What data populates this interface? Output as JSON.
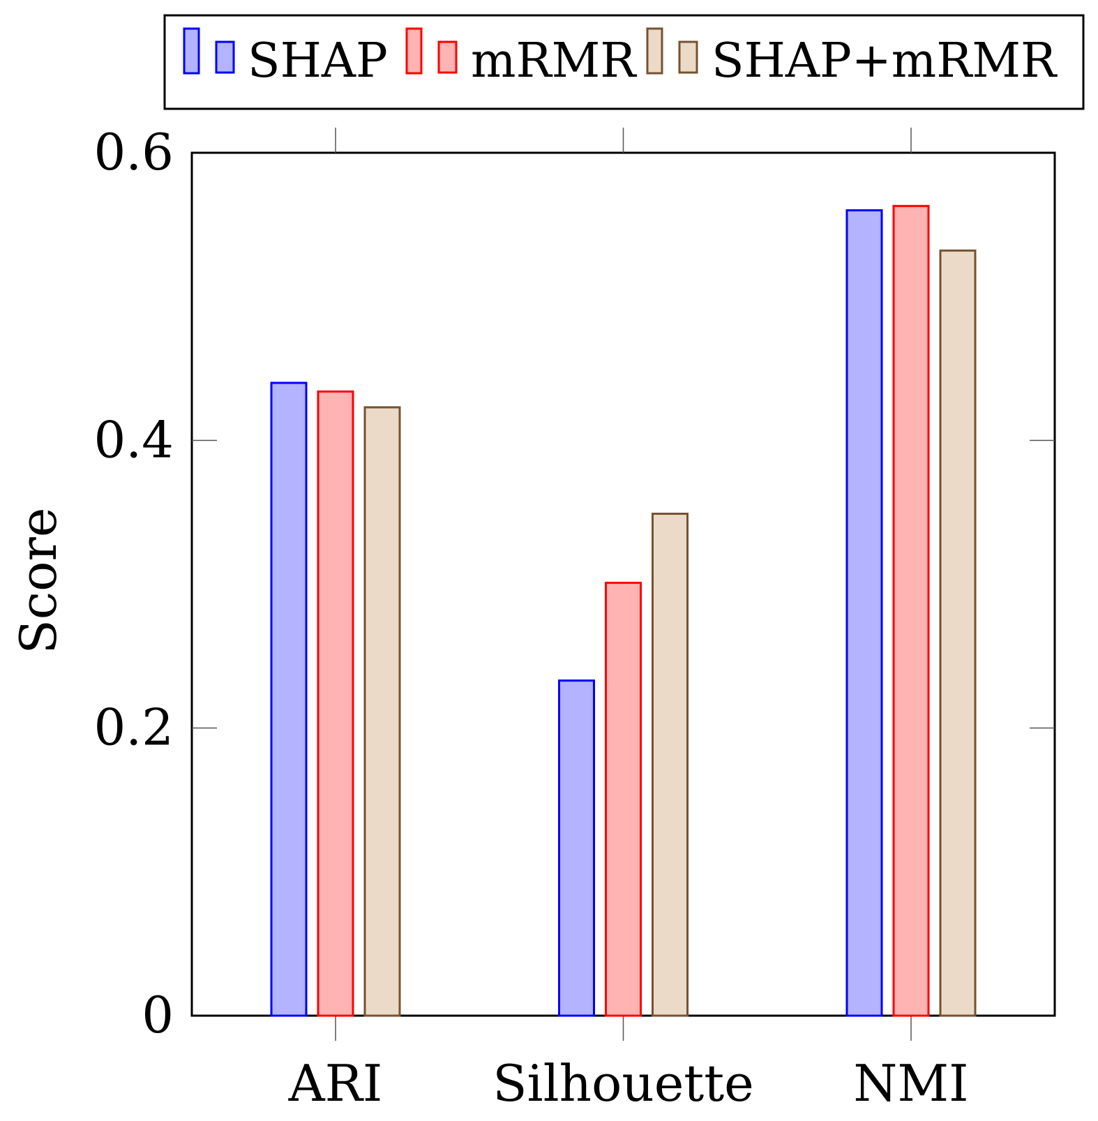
{
  "chart_data": {
    "type": "bar",
    "title": "",
    "xlabel": "",
    "ylabel": "Score",
    "categories": [
      "ARI",
      "Silhouette",
      "NMI"
    ],
    "ylim": [
      0,
      0.6
    ],
    "yticks": [
      "0",
      "0.2",
      "0.4",
      "0.6"
    ],
    "ytick_values": [
      0,
      0.2,
      0.4,
      0.6
    ],
    "grid": false,
    "legend_position": "top",
    "series": [
      {
        "name": "SHAP",
        "values": [
          0.44,
          0.233,
          0.56
        ],
        "stroke": "#0000ff",
        "fill": "#b3b3ff"
      },
      {
        "name": "mRMR",
        "values": [
          0.434,
          0.301,
          0.563
        ],
        "stroke": "#ff0000",
        "fill": "#ffb3b3"
      },
      {
        "name": "SHAP+mRMR",
        "values": [
          0.423,
          0.349,
          0.532
        ],
        "stroke": "#75522f",
        "fill": "#ebdac8"
      }
    ]
  }
}
